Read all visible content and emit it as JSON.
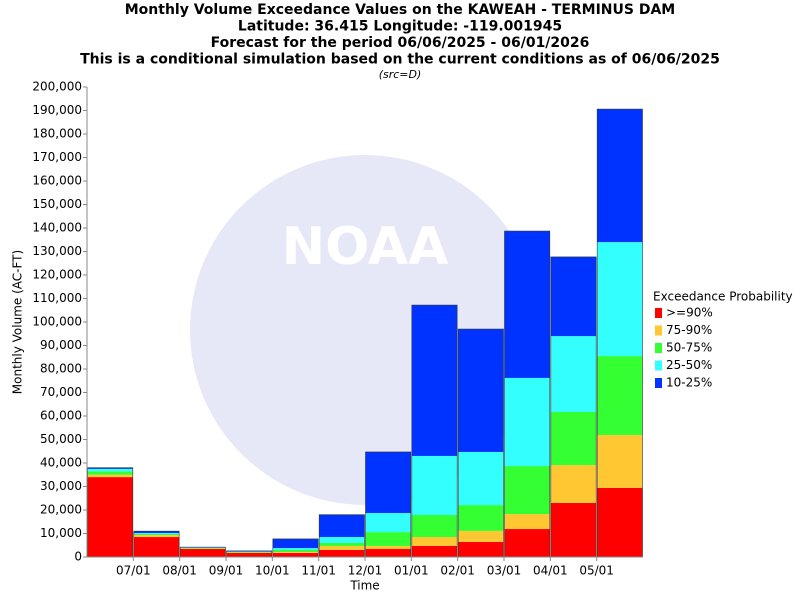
{
  "chart_data": {
    "type": "stacked_bar",
    "title_lines": [
      "Monthly Volume Exceedance Values on the KAWEAH - TERMINUS DAM",
      "Latitude: 36.415 Longitude: -119.001945",
      "Forecast for the period 06/06/2025 - 06/01/2026",
      "This is a conditional simulation based on the current conditions as of 06/06/2025"
    ],
    "subtitle": "(src=D)",
    "watermark": "NOAA",
    "x_label": "Time",
    "y_label": "Monthly Volume (AC-FT)",
    "legend_title": "Exceedance Probability",
    "legend_position": "right",
    "categories": [
      null,
      "07/01",
      "08/01",
      "09/01",
      "10/01",
      "11/01",
      "12/01",
      "01/01",
      "02/01",
      "03/01",
      "04/01",
      "05/01"
    ],
    "series": [
      {
        "name": ">=90%",
        "color": "#ff0000",
        "values": [
          34000,
          8500,
          3400,
          1700,
          1700,
          3000,
          3400,
          4700,
          6400,
          11900,
          23000,
          29400
        ]
      },
      {
        "name": "75-90%",
        "color": "#ffc832",
        "values": [
          1000,
          800,
          200,
          200,
          400,
          1700,
          1300,
          3800,
          4700,
          6400,
          16100,
          22500
        ]
      },
      {
        "name": "50-75%",
        "color": "#33ff33",
        "values": [
          1500,
          500,
          200,
          200,
          900,
          1300,
          5900,
          9400,
          11000,
          20400,
          22600,
          33600
        ]
      },
      {
        "name": "25-50%",
        "color": "#33ffff",
        "values": [
          1000,
          400,
          200,
          200,
          800,
          2500,
          8100,
          25100,
          22600,
          37500,
          32300,
          48500
        ]
      },
      {
        "name": "10-25%",
        "color": "#0033ff",
        "values": [
          500,
          800,
          200,
          300,
          3900,
          9500,
          26000,
          64200,
          52300,
          62500,
          33700,
          56600
        ]
      }
    ],
    "ylim": [
      0,
      200000
    ],
    "yticks": [
      0,
      {
        "value": 10000,
        "label": "10,000"
      },
      {
        "value": 20000,
        "label": "20,000"
      },
      {
        "value": 30000,
        "label": "30,000"
      },
      {
        "value": 40000,
        "label": "40,000"
      },
      {
        "value": 50000,
        "label": "50,000"
      },
      {
        "value": 60000,
        "label": "60,000"
      },
      {
        "value": 70000,
        "label": "70,000"
      },
      {
        "value": 80000,
        "label": "80,000"
      },
      {
        "value": 90000,
        "label": "90,000"
      },
      {
        "value": 100000,
        "label": "100,000"
      },
      {
        "value": 110000,
        "label": "110,000"
      },
      {
        "value": 120000,
        "label": "120,000"
      },
      {
        "value": 130000,
        "label": "130,000"
      },
      {
        "value": 140000,
        "label": "140,000"
      },
      {
        "value": 150000,
        "label": "150,000"
      },
      {
        "value": 160000,
        "label": "160,000"
      },
      {
        "value": 170000,
        "label": "170,000"
      },
      {
        "value": 180000,
        "label": "180,000"
      },
      {
        "value": 190000,
        "label": "190,000"
      },
      {
        "value": 200000,
        "label": "200,000"
      }
    ],
    "grid": false
  }
}
